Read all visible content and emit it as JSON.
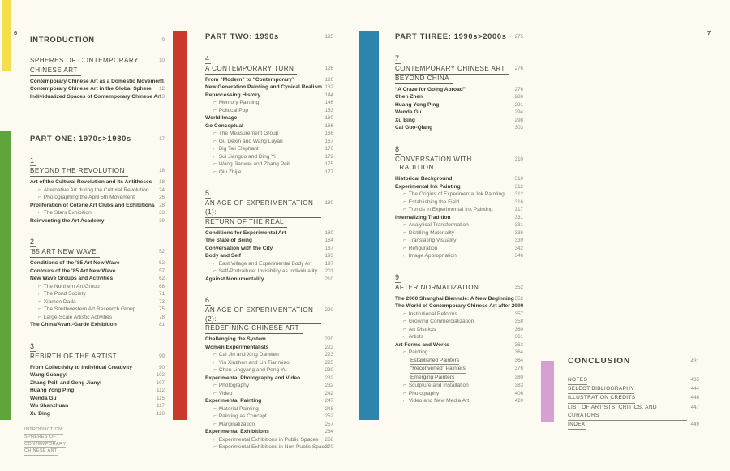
{
  "page": {
    "left_page_number": "6",
    "right_page_number": "7",
    "footer_lines": [
      "INTRODUCTION:",
      "SPHERES OF",
      "CONTEMPORARY",
      "CHINESE ART"
    ]
  },
  "colors": {
    "paper": "#fdfbf1",
    "yellow": "#f2df49",
    "green": "#5fa53c",
    "red": "#c83a2a",
    "blue": "#2d85ac",
    "pink": "#d7a0d2"
  },
  "columns": [
    {
      "blocks": [
        {
          "type": "part",
          "label": "INTRODUCTION",
          "page": "9"
        },
        {
          "type": "chapter",
          "title_lines": [
            "SPHERES OF CONTEMPORARY",
            "CHINESE ART"
          ],
          "page": "10",
          "entries": [
            {
              "label": "Contemporary Chinese Art as a Domestic Movement",
              "page": "11",
              "level": "main"
            },
            {
              "label": "Contemporary Chinese Art in the Global Sphere",
              "page": "12",
              "level": "main"
            },
            {
              "label": "Individualized Spaces of Contemporary Chinese Art",
              "page": "13",
              "level": "main"
            }
          ]
        },
        {
          "type": "part",
          "label": "PART ONE: 1970s>1980s",
          "page": "17"
        },
        {
          "type": "chapter",
          "number": "1",
          "title_lines": [
            "BEYOND THE REVOLUTION"
          ],
          "page": "18",
          "entries": [
            {
              "label": "Art of the Cultural Revolution and Its Antitheses",
              "page": "18",
              "level": "main"
            },
            {
              "label": "Alternative Art during the Cultural Revolution",
              "page": "24",
              "level": "sub"
            },
            {
              "label": "Photographing the April 5th Movement",
              "page": "26",
              "level": "sub"
            },
            {
              "label": "Proliferation of Coterie Art Clubs and Exhibitions",
              "page": "28",
              "level": "main"
            },
            {
              "label": "The Stars Exhibition",
              "page": "33",
              "level": "sub"
            },
            {
              "label": "Reinventing the Art Academy",
              "page": "39",
              "level": "main"
            }
          ]
        },
        {
          "type": "chapter",
          "number": "2",
          "title_lines": [
            "’85 ART NEW WAVE"
          ],
          "page": "52",
          "entries": [
            {
              "label": "Conditions of the ’85 Art New Wave",
              "page": "52",
              "level": "main"
            },
            {
              "label": "Contours of the ’85 Art New Wave",
              "page": "57",
              "level": "main"
            },
            {
              "label": "New Wave Groups and Activities",
              "page": "62",
              "level": "main"
            },
            {
              "label": "The Northern Art Group",
              "page": "68",
              "level": "sub"
            },
            {
              "label": "The Pond Society",
              "page": "71",
              "level": "sub"
            },
            {
              "label": "Xiamen Dada",
              "page": "73",
              "level": "sub"
            },
            {
              "label": "The Southwestern Art Research Group",
              "page": "75",
              "level": "sub"
            },
            {
              "label": "Large-Scale Artistic Activities",
              "page": "78",
              "level": "sub"
            },
            {
              "label": "The China/Avant-Garde Exhibition",
              "page": "81",
              "level": "main"
            }
          ]
        },
        {
          "type": "chapter",
          "number": "3",
          "title_lines": [
            "REBIRTH OF THE ARTIST"
          ],
          "page": "90",
          "entries": [
            {
              "label": "From Collectivity to Individual Creativity",
              "page": "90",
              "level": "main"
            },
            {
              "label": "Wang Guangyi",
              "page": "102",
              "level": "main"
            },
            {
              "label": "Zhang Peili and Geng Jianyi",
              "page": "107",
              "level": "main"
            },
            {
              "label": "Huang Yong Ping",
              "page": "112",
              "level": "main"
            },
            {
              "label": "Wenda Gu",
              "page": "115",
              "level": "main"
            },
            {
              "label": "Wu Shanzhuan",
              "page": "117",
              "level": "main"
            },
            {
              "label": "Xu Bing",
              "page": "120",
              "level": "main"
            }
          ]
        }
      ]
    },
    {
      "blocks": [
        {
          "type": "part",
          "label": "PART TWO: 1990s",
          "page": "125"
        },
        {
          "type": "chapter",
          "number": "4",
          "title_lines": [
            "A CONTEMPORARY TURN"
          ],
          "page": "126",
          "entries": [
            {
              "label": "From “Modern” to “Contemporary”",
              "page": "126",
              "level": "main"
            },
            {
              "label": "New Generation Painting and Cynical Realism",
              "page": "132",
              "level": "main"
            },
            {
              "label": "Reprocessing History",
              "page": "144",
              "level": "main"
            },
            {
              "label": "Memory Painting",
              "page": "146",
              "level": "sub"
            },
            {
              "label": "Political Pop",
              "page": "153",
              "level": "sub"
            },
            {
              "label": "World Image",
              "page": "160",
              "level": "main"
            },
            {
              "label": "Go Conceptual",
              "page": "166",
              "level": "main"
            },
            {
              "label": "The Measurement Group",
              "page": "166",
              "level": "sub"
            },
            {
              "label": "Gu Dexin and Wang Luyan",
              "page": "167",
              "level": "sub"
            },
            {
              "label": "Big Tail Elephant",
              "page": "170",
              "level": "sub"
            },
            {
              "label": "Sui Jianguo and Ding Yi",
              "page": "172",
              "level": "sub"
            },
            {
              "label": "Wang Jianwei and Zhang Peili",
              "page": "175",
              "level": "sub"
            },
            {
              "label": "Qiu Zhijie",
              "page": "177",
              "level": "sub"
            }
          ]
        },
        {
          "type": "chapter",
          "number": "5",
          "title_lines": [
            "AN AGE OF EXPERIMENTATION (1):",
            "RETURN OF THE REAL"
          ],
          "page": "180",
          "entries": [
            {
              "label": "Conditions for Experimental Art",
              "page": "180",
              "level": "main"
            },
            {
              "label": "The State of Being",
              "page": "184",
              "level": "main"
            },
            {
              "label": "Conversation with the City",
              "page": "187",
              "level": "main"
            },
            {
              "label": "Body and Self",
              "page": "193",
              "level": "main"
            },
            {
              "label": "East Village and Experimental Body Art",
              "page": "197",
              "level": "sub"
            },
            {
              "label": "Self-Portraiture: Invisibility as Individuality",
              "page": "201",
              "level": "sub"
            },
            {
              "label": "Against Monumentality",
              "page": "210",
              "level": "main"
            }
          ]
        },
        {
          "type": "chapter",
          "number": "6",
          "title_lines": [
            "AN AGE OF EXPERIMENTATION (2):",
            "REDEFINING CHINESE ART"
          ],
          "page": "220",
          "entries": [
            {
              "label": "Challenging the System",
              "page": "220",
              "level": "main"
            },
            {
              "label": "Women Experimentalists",
              "page": "222",
              "level": "main"
            },
            {
              "label": "Cai Jin and Xing Danwen",
              "page": "223",
              "level": "sub"
            },
            {
              "label": "Yin Xiuzhen and Lin Tianmiao",
              "page": "225",
              "level": "sub"
            },
            {
              "label": "Chen Lingyang and Peng Yu",
              "page": "230",
              "level": "sub"
            },
            {
              "label": "Experimental Photography and Video",
              "page": "232",
              "level": "main"
            },
            {
              "label": "Photography",
              "page": "232",
              "level": "sub"
            },
            {
              "label": "Video",
              "page": "242",
              "level": "sub"
            },
            {
              "label": "Experimental Painting",
              "page": "247",
              "level": "main"
            },
            {
              "label": "Material Painting",
              "page": "248",
              "level": "sub"
            },
            {
              "label": "Painting as Concept",
              "page": "252",
              "level": "sub"
            },
            {
              "label": "Marginalization",
              "page": "257",
              "level": "sub"
            },
            {
              "label": "Experimental Exhibitions",
              "page": "264",
              "level": "main"
            },
            {
              "label": "Experimental Exhibitions in Public Spaces",
              "page": "268",
              "level": "sub"
            },
            {
              "label": "Experimental Exhibitions in Non-Public Spaces",
              "page": "270",
              "level": "sub"
            }
          ]
        }
      ]
    },
    {
      "blocks": [
        {
          "type": "part",
          "label": "PART THREE: 1990s>2000s",
          "page": "275"
        },
        {
          "type": "chapter",
          "number": "7",
          "title_lines": [
            "CONTEMPORARY CHINESE ART",
            "BEYOND CHINA"
          ],
          "page": "276",
          "entries": [
            {
              "label": "“A Craze for Going Abroad”",
              "page": "276",
              "level": "main"
            },
            {
              "label": "Chen Zhen",
              "page": "286",
              "level": "main"
            },
            {
              "label": "Huang Yong Ping",
              "page": "291",
              "level": "main"
            },
            {
              "label": "Wenda Gu",
              "page": "294",
              "level": "main"
            },
            {
              "label": "Xu Bing",
              "page": "298",
              "level": "main"
            },
            {
              "label": "Cai Guo-Qiang",
              "page": "303",
              "level": "main"
            }
          ]
        },
        {
          "type": "chapter",
          "number": "8",
          "title_lines": [
            "CONVERSATION WITH TRADITION"
          ],
          "page": "310",
          "entries": [
            {
              "label": "Historical Background",
              "page": "310",
              "level": "main"
            },
            {
              "label": "Experimental Ink Painting",
              "page": "312",
              "level": "main"
            },
            {
              "label": "The Origins of Experimental Ink Painting",
              "page": "312",
              "level": "sub"
            },
            {
              "label": "Establishing the Field",
              "page": "316",
              "level": "sub"
            },
            {
              "label": "Trends in Experimental Ink Painting",
              "page": "317",
              "level": "sub"
            },
            {
              "label": "Internalizing Tradition",
              "page": "331",
              "level": "main"
            },
            {
              "label": "Analytical Transformation",
              "page": "331",
              "level": "sub"
            },
            {
              "label": "Distilling Materiality",
              "page": "336",
              "level": "sub"
            },
            {
              "label": "Translating Visuality",
              "page": "339",
              "level": "sub"
            },
            {
              "label": "Refiguration",
              "page": "342",
              "level": "sub"
            },
            {
              "label": "Image Appropriation",
              "page": "346",
              "level": "sub"
            }
          ]
        },
        {
          "type": "chapter",
          "number": "9",
          "title_lines": [
            "AFTER NORMALIZATION"
          ],
          "page": "352",
          "entries": [
            {
              "label": "The 2000 Shanghai Biennale: A New Beginning",
              "page": "352",
              "level": "main"
            },
            {
              "label": "The World of Contemporary Chinese Art after 2000",
              "page": "357",
              "level": "main"
            },
            {
              "label": "Institutional Reforms",
              "page": "357",
              "level": "sub"
            },
            {
              "label": "Growing Commercialization",
              "page": "358",
              "level": "sub"
            },
            {
              "label": "Art Districts",
              "page": "360",
              "level": "sub"
            },
            {
              "label": "Artists",
              "page": "361",
              "level": "sub"
            },
            {
              "label": "Art Forms and Works",
              "page": "363",
              "level": "main"
            },
            {
              "label": "Painting",
              "page": "364",
              "level": "sub"
            },
            {
              "label": "Established Painters",
              "page": "364",
              "level": "sub2"
            },
            {
              "label": "“Reconverted” Painters",
              "page": "376",
              "level": "sub2"
            },
            {
              "label": "Emerging Painters",
              "page": "380",
              "level": "sub2"
            },
            {
              "label": "Sculpture and Installation",
              "page": "383",
              "level": "sub"
            },
            {
              "label": "Photography",
              "page": "406",
              "level": "sub"
            },
            {
              "label": "Video and New Media Art",
              "page": "420",
              "level": "sub"
            }
          ]
        }
      ]
    }
  ],
  "conclusion": {
    "title": "CONCLUSION",
    "page": "431",
    "items": [
      {
        "label": "NOTES",
        "page": "435"
      },
      {
        "label": "SELECT BIBLIOGRAPHY",
        "page": "444"
      },
      {
        "label": "ILLUSTRATION CREDITS",
        "page": "446"
      },
      {
        "label": "LIST OF ARTISTS, CRITICS, AND CURATORS",
        "page": "447"
      },
      {
        "label": "INDEX",
        "page": "449"
      }
    ]
  }
}
